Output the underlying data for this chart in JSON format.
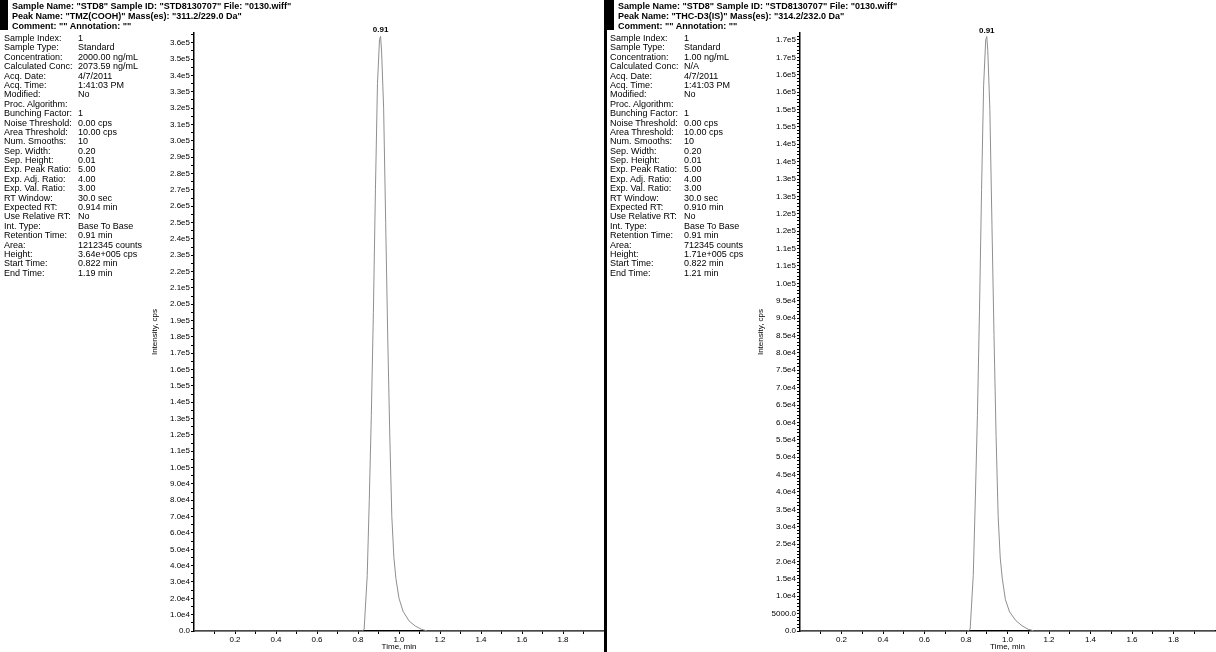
{
  "chart_data": [
    {
      "type": "line",
      "title": "Sample Name: \"STD8\" Sample ID: \"STD8130707\" File: \"0130.wiff\"\nPeak Name: \"TMZ(COOH)\" Mass(es): \"311.2/229.0 Da\"\nComment: \"\" Annotation: \"\"",
      "xlabel": "Time, min",
      "ylabel": "Intensity, cps",
      "color": "#8f8f8f",
      "x": [
        0,
        0.5,
        0.82,
        0.83,
        0.845,
        0.855,
        0.865,
        0.875,
        0.885,
        0.895,
        0.905,
        0.91,
        0.915,
        0.925,
        0.935,
        0.945,
        0.955,
        0.965,
        0.975,
        0.985,
        1.0,
        1.02,
        1.05,
        1.08,
        1.11,
        1.14,
        1.5,
        2.0
      ],
      "values": [
        0,
        0,
        0,
        1000,
        34000,
        80000,
        132000,
        195000,
        270000,
        335000,
        362000,
        364000,
        355000,
        320000,
        250000,
        180000,
        120000,
        70000,
        45000,
        32000,
        20000,
        12000,
        6000,
        3000,
        1000,
        0,
        0,
        0
      ],
      "xlim": [
        0,
        2.0
      ],
      "xticks": [
        {
          "value": 0.1,
          "label": null
        },
        0.2,
        {
          "value": 0.3,
          "label": null
        },
        0.4,
        {
          "value": 0.5,
          "label": null
        },
        0.6,
        {
          "value": 0.7,
          "label": null
        },
        0.8,
        {
          "value": 0.9,
          "label": null
        },
        {
          "value": 1,
          "label": "1.0"
        },
        {
          "value": 1.1,
          "label": null
        },
        1.2,
        {
          "value": 1.3,
          "label": null
        },
        1.4,
        {
          "value": 1.5,
          "label": null
        },
        1.6,
        {
          "value": 1.7,
          "label": null
        },
        1.8,
        {
          "value": 1.9,
          "label": null
        }
      ],
      "ylim": [
        0,
        366000
      ],
      "yticks": [
        {
          "value": 0,
          "label": "0.0"
        },
        {
          "value": 5000,
          "label": null
        },
        {
          "value": 10000,
          "label": "1.0e4"
        },
        {
          "value": 15000,
          "label": null
        },
        {
          "value": 20000,
          "label": "2.0e4"
        },
        {
          "value": 25000,
          "label": null
        },
        {
          "value": 30000,
          "label": "3.0e4"
        },
        {
          "value": 35000,
          "label": null
        },
        {
          "value": 40000,
          "label": "4.0e4"
        },
        {
          "value": 45000,
          "label": null
        },
        {
          "value": 50000,
          "label": "5.0e4"
        },
        {
          "value": 55000,
          "label": null
        },
        {
          "value": 60000,
          "label": "6.0e4"
        },
        {
          "value": 65000,
          "label": null
        },
        {
          "value": 70000,
          "label": "7.0e4"
        },
        {
          "value": 75000,
          "label": null
        },
        {
          "value": 80000,
          "label": "8.0e4"
        },
        {
          "value": 85000,
          "label": null
        },
        {
          "value": 90000,
          "label": "9.0e4"
        },
        {
          "value": 95000,
          "label": null
        },
        {
          "value": 100000,
          "label": "1.0e5"
        },
        {
          "value": 105000,
          "label": null
        },
        {
          "value": 110000,
          "label": "1.1e5"
        },
        {
          "value": 115000,
          "label": null
        },
        {
          "value": 120000,
          "label": "1.2e5"
        },
        {
          "value": 125000,
          "label": null
        },
        {
          "value": 130000,
          "label": "1.3e5"
        },
        {
          "value": 135000,
          "label": null
        },
        {
          "value": 140000,
          "label": "1.4e5"
        },
        {
          "value": 145000,
          "label": null
        },
        {
          "value": 150000,
          "label": "1.5e5"
        },
        {
          "value": 155000,
          "label": null
        },
        {
          "value": 160000,
          "label": "1.6e5"
        },
        {
          "value": 165000,
          "label": null
        },
        {
          "value": 170000,
          "label": "1.7e5"
        },
        {
          "value": 175000,
          "label": null
        },
        {
          "value": 180000,
          "label": "1.8e5"
        },
        {
          "value": 185000,
          "label": null
        },
        {
          "value": 190000,
          "label": "1.9e5"
        },
        {
          "value": 195000,
          "label": null
        },
        {
          "value": 200000,
          "label": "2.0e5"
        },
        {
          "value": 205000,
          "label": null
        },
        {
          "value": 210000,
          "label": "2.1e5"
        },
        {
          "value": 215000,
          "label": null
        },
        {
          "value": 220000,
          "label": "2.2e5"
        },
        {
          "value": 225000,
          "label": null
        },
        {
          "value": 230000,
          "label": "2.3e5"
        },
        {
          "value": 235000,
          "label": null
        },
        {
          "value": 240000,
          "label": "2.4e5"
        },
        {
          "value": 245000,
          "label": null
        },
        {
          "value": 250000,
          "label": "2.5e5"
        },
        {
          "value": 255000,
          "label": null
        },
        {
          "value": 260000,
          "label": "2.6e5"
        },
        {
          "value": 265000,
          "label": null
        },
        {
          "value": 270000,
          "label": "2.7e5"
        },
        {
          "value": 275000,
          "label": null
        },
        {
          "value": 280000,
          "label": "2.8e5"
        },
        {
          "value": 285000,
          "label": null
        },
        {
          "value": 290000,
          "label": "2.9e5"
        },
        {
          "value": 295000,
          "label": null
        },
        {
          "value": 300000,
          "label": "3.0e5"
        },
        {
          "value": 305000,
          "label": null
        },
        {
          "value": 310000,
          "label": "3.1e5"
        },
        {
          "value": 315000,
          "label": null
        },
        {
          "value": 320000,
          "label": "3.2e5"
        },
        {
          "value": 325000,
          "label": null
        },
        {
          "value": 330000,
          "label": "3.3e5"
        },
        {
          "value": 335000,
          "label": null
        },
        {
          "value": 340000,
          "label": "3.4e5"
        },
        {
          "value": 345000,
          "label": null
        },
        {
          "value": 350000,
          "label": "3.5e5"
        },
        {
          "value": 355000,
          "label": null
        },
        {
          "value": 360000,
          "label": "3.6e5"
        },
        {
          "value": 365000,
          "label": null
        }
      ],
      "annotations": [
        "Sample Index: 1",
        "Sample Type: Standard",
        "Concentration: 2000.00 ng/mL",
        "Calculated Conc: 2073.59 ng/mL",
        "Acq. Date: 4/7/2011",
        "Acq. Time: 1:41:03 PM",
        "Modified: No",
        "Proc. Algorithm:",
        "Bunching Factor: 1",
        "Noise Threshold: 0.00 cps",
        "Area Threshold: 10.00 cps",
        "Num. Smooths: 10",
        "Sep. Width: 0.20",
        "Sep. Height: 0.01",
        "Exp. Peak Ratio: 5.00",
        "Exp. Adj. Ratio: 4.00",
        "Exp. Val. Ratio: 3.00",
        "RT Window: 30.0 sec",
        "Expected RT: 0.914 min",
        "Use Relative RT: No",
        "Int. Type: Base To Base",
        "Retention Time: 0.91 min",
        "Area: 1212345 counts",
        "Height: 3.64e+005 cps",
        "Start Time: 0.822 min",
        "End Time: 1.19 min",
        {
          "text": "0.91",
          "x": 0.91,
          "y": 364000
        }
      ]
    },
    {
      "type": "line",
      "title": "Sample Name: \"STD8\" Sample ID: \"STD8130707\" File: \"0130.wiff\"\nPeak Name: \"THC-D3(IS)\" Mass(es): \"314.2/232.0 Da\"\nComment: \"\" Annotation: \"\"",
      "xlabel": "Time, min",
      "ylabel": "Intensity, cps",
      "color": "#8f8f8f",
      "x": [
        0,
        0.5,
        0.81,
        0.82,
        0.835,
        0.845,
        0.855,
        0.865,
        0.875,
        0.885,
        0.895,
        0.9,
        0.905,
        0.915,
        0.925,
        0.935,
        0.945,
        0.955,
        0.965,
        0.975,
        0.99,
        1.01,
        1.04,
        1.07,
        1.1,
        1.13,
        1.5,
        2.0
      ],
      "values": [
        0,
        0,
        0,
        500,
        16000,
        38000,
        62000,
        92000,
        127000,
        157000,
        170000,
        171000,
        167000,
        150000,
        117000,
        85000,
        56000,
        33000,
        21000,
        15000,
        9000,
        5500,
        3000,
        1500,
        500,
        0,
        0,
        0
      ],
      "xlim": [
        0,
        2.0
      ],
      "xticks": [
        {
          "value": 0.1,
          "label": null
        },
        0.2,
        {
          "value": 0.3,
          "label": null
        },
        0.4,
        {
          "value": 0.5,
          "label": null
        },
        0.6,
        {
          "value": 0.7,
          "label": null
        },
        0.8,
        {
          "value": 0.9,
          "label": null
        },
        {
          "value": 1,
          "label": "1.0"
        },
        {
          "value": 1.1,
          "label": null
        },
        1.2,
        {
          "value": 1.3,
          "label": null
        },
        1.4,
        {
          "value": 1.5,
          "label": null
        },
        1.6,
        {
          "value": 1.7,
          "label": null
        },
        1.8,
        {
          "value": 1.9,
          "label": null
        }
      ],
      "ylim": [
        0,
        172000
      ],
      "yticks": [
        {
          "value": 0,
          "label": "0.0"
        },
        {
          "value": 1000,
          "label": null
        },
        {
          "value": 2000,
          "label": null
        },
        {
          "value": 3000,
          "label": null
        },
        {
          "value": 4000,
          "label": null
        },
        {
          "value": 5000,
          "label": "5000.0"
        },
        {
          "value": 6000,
          "label": null
        },
        {
          "value": 7000,
          "label": null
        },
        {
          "value": 8000,
          "label": null
        },
        {
          "value": 9000,
          "label": null
        },
        {
          "value": 10000,
          "label": "1.0e4"
        },
        {
          "value": 11000,
          "label": null
        },
        {
          "value": 12000,
          "label": null
        },
        {
          "value": 13000,
          "label": null
        },
        {
          "value": 14000,
          "label": null
        },
        {
          "value": 15000,
          "label": "1.5e4"
        },
        {
          "value": 16000,
          "label": null
        },
        {
          "value": 17000,
          "label": null
        },
        {
          "value": 18000,
          "label": null
        },
        {
          "value": 19000,
          "label": null
        },
        {
          "value": 20000,
          "label": "2.0e4"
        },
        {
          "value": 21000,
          "label": null
        },
        {
          "value": 22000,
          "label": null
        },
        {
          "value": 23000,
          "label": null
        },
        {
          "value": 24000,
          "label": null
        },
        {
          "value": 25000,
          "label": "2.5e4"
        },
        {
          "value": 26000,
          "label": null
        },
        {
          "value": 27000,
          "label": null
        },
        {
          "value": 28000,
          "label": null
        },
        {
          "value": 29000,
          "label": null
        },
        {
          "value": 30000,
          "label": "3.0e4"
        },
        {
          "value": 31000,
          "label": null
        },
        {
          "value": 32000,
          "label": null
        },
        {
          "value": 33000,
          "label": null
        },
        {
          "value": 34000,
          "label": null
        },
        {
          "value": 35000,
          "label": "3.5e4"
        },
        {
          "value": 36000,
          "label": null
        },
        {
          "value": 37000,
          "label": null
        },
        {
          "value": 38000,
          "label": null
        },
        {
          "value": 39000,
          "label": null
        },
        {
          "value": 40000,
          "label": "4.0e4"
        },
        {
          "value": 41000,
          "label": null
        },
        {
          "value": 42000,
          "label": null
        },
        {
          "value": 43000,
          "label": null
        },
        {
          "value": 44000,
          "label": null
        },
        {
          "value": 45000,
          "label": "4.5e4"
        },
        {
          "value": 46000,
          "label": null
        },
        {
          "value": 47000,
          "label": null
        },
        {
          "value": 48000,
          "label": null
        },
        {
          "value": 49000,
          "label": null
        },
        {
          "value": 50000,
          "label": "5.0e4"
        },
        {
          "value": 51000,
          "label": null
        },
        {
          "value": 52000,
          "label": null
        },
        {
          "value": 53000,
          "label": null
        },
        {
          "value": 54000,
          "label": null
        },
        {
          "value": 55000,
          "label": "5.5e4"
        },
        {
          "value": 56000,
          "label": null
        },
        {
          "value": 57000,
          "label": null
        },
        {
          "value": 58000,
          "label": null
        },
        {
          "value": 59000,
          "label": null
        },
        {
          "value": 60000,
          "label": "6.0e4"
        },
        {
          "value": 61000,
          "label": null
        },
        {
          "value": 62000,
          "label": null
        },
        {
          "value": 63000,
          "label": null
        },
        {
          "value": 64000,
          "label": null
        },
        {
          "value": 65000,
          "label": "6.5e4"
        },
        {
          "value": 66000,
          "label": null
        },
        {
          "value": 67000,
          "label": null
        },
        {
          "value": 68000,
          "label": null
        },
        {
          "value": 69000,
          "label": null
        },
        {
          "value": 70000,
          "label": "7.0e4"
        },
        {
          "value": 71000,
          "label": null
        },
        {
          "value": 72000,
          "label": null
        },
        {
          "value": 73000,
          "label": null
        },
        {
          "value": 74000,
          "label": null
        },
        {
          "value": 75000,
          "label": "7.5e4"
        },
        {
          "value": 76000,
          "label": null
        },
        {
          "value": 77000,
          "label": null
        },
        {
          "value": 78000,
          "label": null
        },
        {
          "value": 79000,
          "label": null
        },
        {
          "value": 80000,
          "label": "8.0e4"
        },
        {
          "value": 81000,
          "label": null
        },
        {
          "value": 82000,
          "label": null
        },
        {
          "value": 83000,
          "label": null
        },
        {
          "value": 84000,
          "label": null
        },
        {
          "value": 85000,
          "label": "8.5e4"
        },
        {
          "value": 86000,
          "label": null
        },
        {
          "value": 87000,
          "label": null
        },
        {
          "value": 88000,
          "label": null
        },
        {
          "value": 89000,
          "label": null
        },
        {
          "value": 90000,
          "label": "9.0e4"
        },
        {
          "value": 91000,
          "label": null
        },
        {
          "value": 92000,
          "label": null
        },
        {
          "value": 93000,
          "label": null
        },
        {
          "value": 94000,
          "label": null
        },
        {
          "value": 95000,
          "label": "9.5e4"
        },
        {
          "value": 96000,
          "label": null
        },
        {
          "value": 97000,
          "label": null
        },
        {
          "value": 98000,
          "label": null
        },
        {
          "value": 99000,
          "label": null
        },
        {
          "value": 100000,
          "label": "1.0e5"
        },
        {
          "value": 101000,
          "label": null
        },
        {
          "value": 102000,
          "label": null
        },
        {
          "value": 103000,
          "label": null
        },
        {
          "value": 104000,
          "label": null
        },
        {
          "value": 105000,
          "label": "1.1e5"
        },
        {
          "value": 106000,
          "label": null
        },
        {
          "value": 107000,
          "label": null
        },
        {
          "value": 108000,
          "label": null
        },
        {
          "value": 109000,
          "label": null
        },
        {
          "value": 110000,
          "label": "1.1e5"
        },
        {
          "value": 111000,
          "label": null
        },
        {
          "value": 112000,
          "label": null
        },
        {
          "value": 113000,
          "label": null
        },
        {
          "value": 114000,
          "label": null
        },
        {
          "value": 115000,
          "label": "1.2e5"
        },
        {
          "value": 116000,
          "label": null
        },
        {
          "value": 117000,
          "label": null
        },
        {
          "value": 118000,
          "label": null
        },
        {
          "value": 119000,
          "label": null
        },
        {
          "value": 120000,
          "label": "1.2e5"
        },
        {
          "value": 121000,
          "label": null
        },
        {
          "value": 122000,
          "label": null
        },
        {
          "value": 123000,
          "label": null
        },
        {
          "value": 124000,
          "label": null
        },
        {
          "value": 125000,
          "label": "1.3e5"
        },
        {
          "value": 126000,
          "label": null
        },
        {
          "value": 127000,
          "label": null
        },
        {
          "value": 128000,
          "label": null
        },
        {
          "value": 129000,
          "label": null
        },
        {
          "value": 130000,
          "label": "1.3e5"
        },
        {
          "value": 131000,
          "label": null
        },
        {
          "value": 132000,
          "label": null
        },
        {
          "value": 133000,
          "label": null
        },
        {
          "value": 134000,
          "label": null
        },
        {
          "value": 135000,
          "label": "1.4e5"
        },
        {
          "value": 136000,
          "label": null
        },
        {
          "value": 137000,
          "label": null
        },
        {
          "value": 138000,
          "label": null
        },
        {
          "value": 139000,
          "label": null
        },
        {
          "value": 140000,
          "label": "1.4e5"
        },
        {
          "value": 141000,
          "label": null
        },
        {
          "value": 142000,
          "label": null
        },
        {
          "value": 143000,
          "label": null
        },
        {
          "value": 144000,
          "label": null
        },
        {
          "value": 145000,
          "label": "1.5e5"
        },
        {
          "value": 146000,
          "label": null
        },
        {
          "value": 147000,
          "label": null
        },
        {
          "value": 148000,
          "label": null
        },
        {
          "value": 149000,
          "label": null
        },
        {
          "value": 150000,
          "label": "1.5e5"
        },
        {
          "value": 151000,
          "label": null
        },
        {
          "value": 152000,
          "label": null
        },
        {
          "value": 153000,
          "label": null
        },
        {
          "value": 154000,
          "label": null
        },
        {
          "value": 155000,
          "label": "1.6e5"
        },
        {
          "value": 156000,
          "label": null
        },
        {
          "value": 157000,
          "label": null
        },
        {
          "value": 158000,
          "label": null
        },
        {
          "value": 159000,
          "label": null
        },
        {
          "value": 160000,
          "label": "1.6e5"
        },
        {
          "value": 161000,
          "label": null
        },
        {
          "value": 162000,
          "label": null
        },
        {
          "value": 163000,
          "label": null
        },
        {
          "value": 164000,
          "label": null
        },
        {
          "value": 165000,
          "label": "1.7e5"
        },
        {
          "value": 166000,
          "label": null
        },
        {
          "value": 167000,
          "label": null
        },
        {
          "value": 168000,
          "label": null
        },
        {
          "value": 169000,
          "label": null
        },
        {
          "value": 170000,
          "label": "1.7e5"
        },
        {
          "value": 171000,
          "label": null
        }
      ],
      "annotations": [
        "Sample Index: 1",
        "Sample Type: Standard",
        "Concentration: 1.00 ng/mL",
        "Calculated Conc: N/A",
        "Acq. Date: 4/7/2011",
        "Acq. Time: 1:41:03 PM",
        "Modified: No",
        "Proc. Algorithm:",
        "Bunching Factor: 1",
        "Noise Threshold: 0.00 cps",
        "Area Threshold: 10.00 cps",
        "Num. Smooths: 10",
        "Sep. Width: 0.20",
        "Sep. Height: 0.01",
        "Exp. Peak Ratio: 5.00",
        "Exp. Adj. Ratio: 4.00",
        "Exp. Val. Ratio: 3.00",
        "RT Window: 30.0 sec",
        "Expected RT: 0.910 min",
        "Use Relative RT: No",
        "Int. Type: Base To Base",
        "Retention Time: 0.91 min",
        "Area: 712345 counts",
        "Height: 1.71e+005 cps",
        "Start Time: 0.822 min",
        "End Time: 1.21 min",
        {
          "text": "0.91",
          "x": 0.9,
          "y": 171000
        }
      ]
    }
  ]
}
